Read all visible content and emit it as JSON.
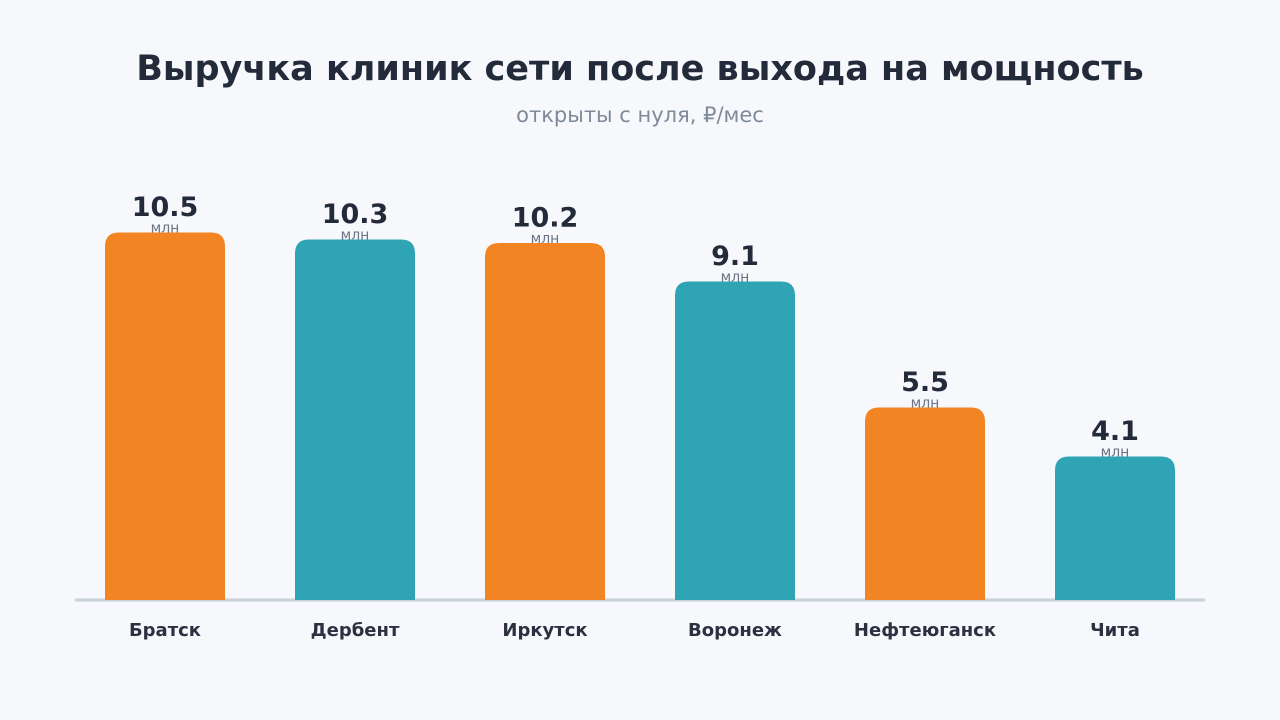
{
  "chart_data": {
    "type": "bar",
    "title": "Выручка клиник сети после выхода на мощность",
    "subtitle": "открыты с нуля, ₽/мес",
    "categories": [
      "Братск",
      "Дербент",
      "Иркутск",
      "Воронеж",
      "Нефтеюганск",
      "Чита"
    ],
    "values": [
      10.5,
      10.3,
      10.2,
      9.1,
      5.5,
      4.1
    ],
    "value_unit": "млн",
    "colors": [
      "#f28424",
      "#2fa4b5",
      "#f28424",
      "#2fa4b5",
      "#f28424",
      "#2fa4b5"
    ]
  }
}
